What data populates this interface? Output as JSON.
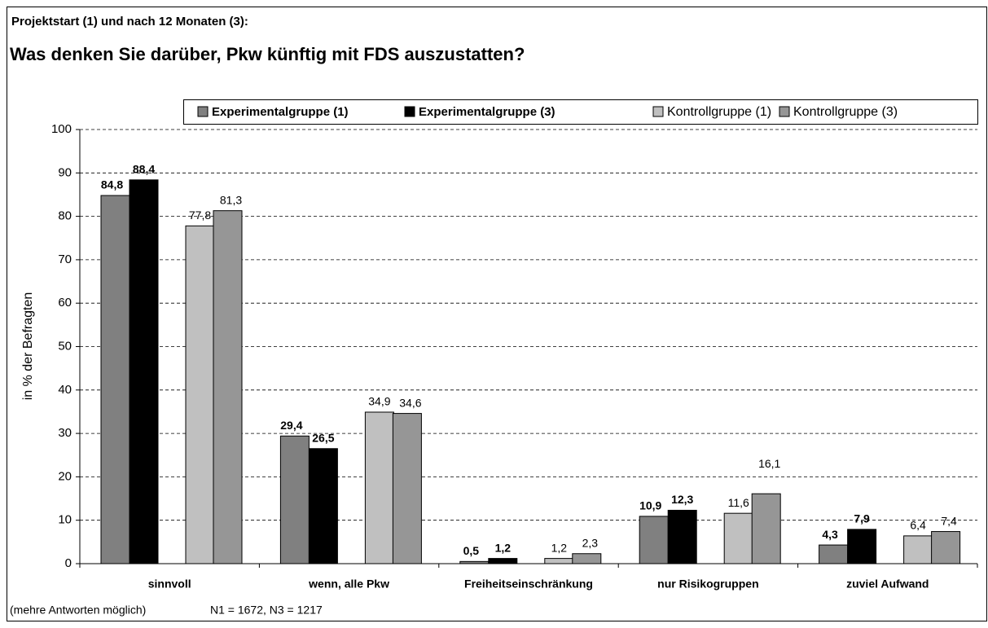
{
  "chart_data": {
    "type": "bar",
    "supertitle": "Projektstart (1) und nach 12 Monaten (3):",
    "title": "Was denken Sie darüber, Pkw künftig mit FDS auszustatten?",
    "y_label": "in % der Befragten",
    "categories": [
      "sinnvoll",
      "wenn, alle Pkw",
      "Freiheitseinschränkung",
      "nur Risikogruppen",
      "zuviel Aufwand"
    ],
    "series": [
      {
        "name": "Experimentalgruppe (1)",
        "color": "#808080",
        "bold": true,
        "values": [
          84.8,
          29.4,
          0.5,
          10.9,
          4.3
        ],
        "value_labels": [
          "84,8",
          "29,4",
          "0,5",
          "10,9",
          "4,3"
        ]
      },
      {
        "name": "Experimentalgruppe (3)",
        "color": "#000000",
        "bold": true,
        "values": [
          88.4,
          26.5,
          1.2,
          12.3,
          7.9
        ],
        "value_labels": [
          "88,4",
          "26,5",
          "1,2",
          "12,3",
          "7,9"
        ]
      },
      {
        "name": "Kontrollgruppe (1)",
        "color": "#c0c0c0",
        "bold": false,
        "values": [
          77.8,
          34.9,
          1.2,
          11.6,
          6.4
        ],
        "value_labels": [
          "77,8",
          "34,9",
          "1,2",
          "11,6",
          "6,4"
        ]
      },
      {
        "name": "Kontrollgruppe (3)",
        "color": "#969696",
        "bold": false,
        "values": [
          81.3,
          34.6,
          2.3,
          16.1,
          7.4
        ],
        "value_labels": [
          "81,3",
          "34,6",
          "2,3",
          "16,1",
          "7,4"
        ]
      }
    ],
    "ylim": [
      0,
      100
    ],
    "yticks": [
      0,
      10,
      20,
      30,
      40,
      50,
      60,
      70,
      80,
      90,
      100
    ],
    "grid": true,
    "legend": "top",
    "footnote": "(mehre Antworten möglich)",
    "sample_note": "N1 = 1672,  N3 = 1217"
  }
}
